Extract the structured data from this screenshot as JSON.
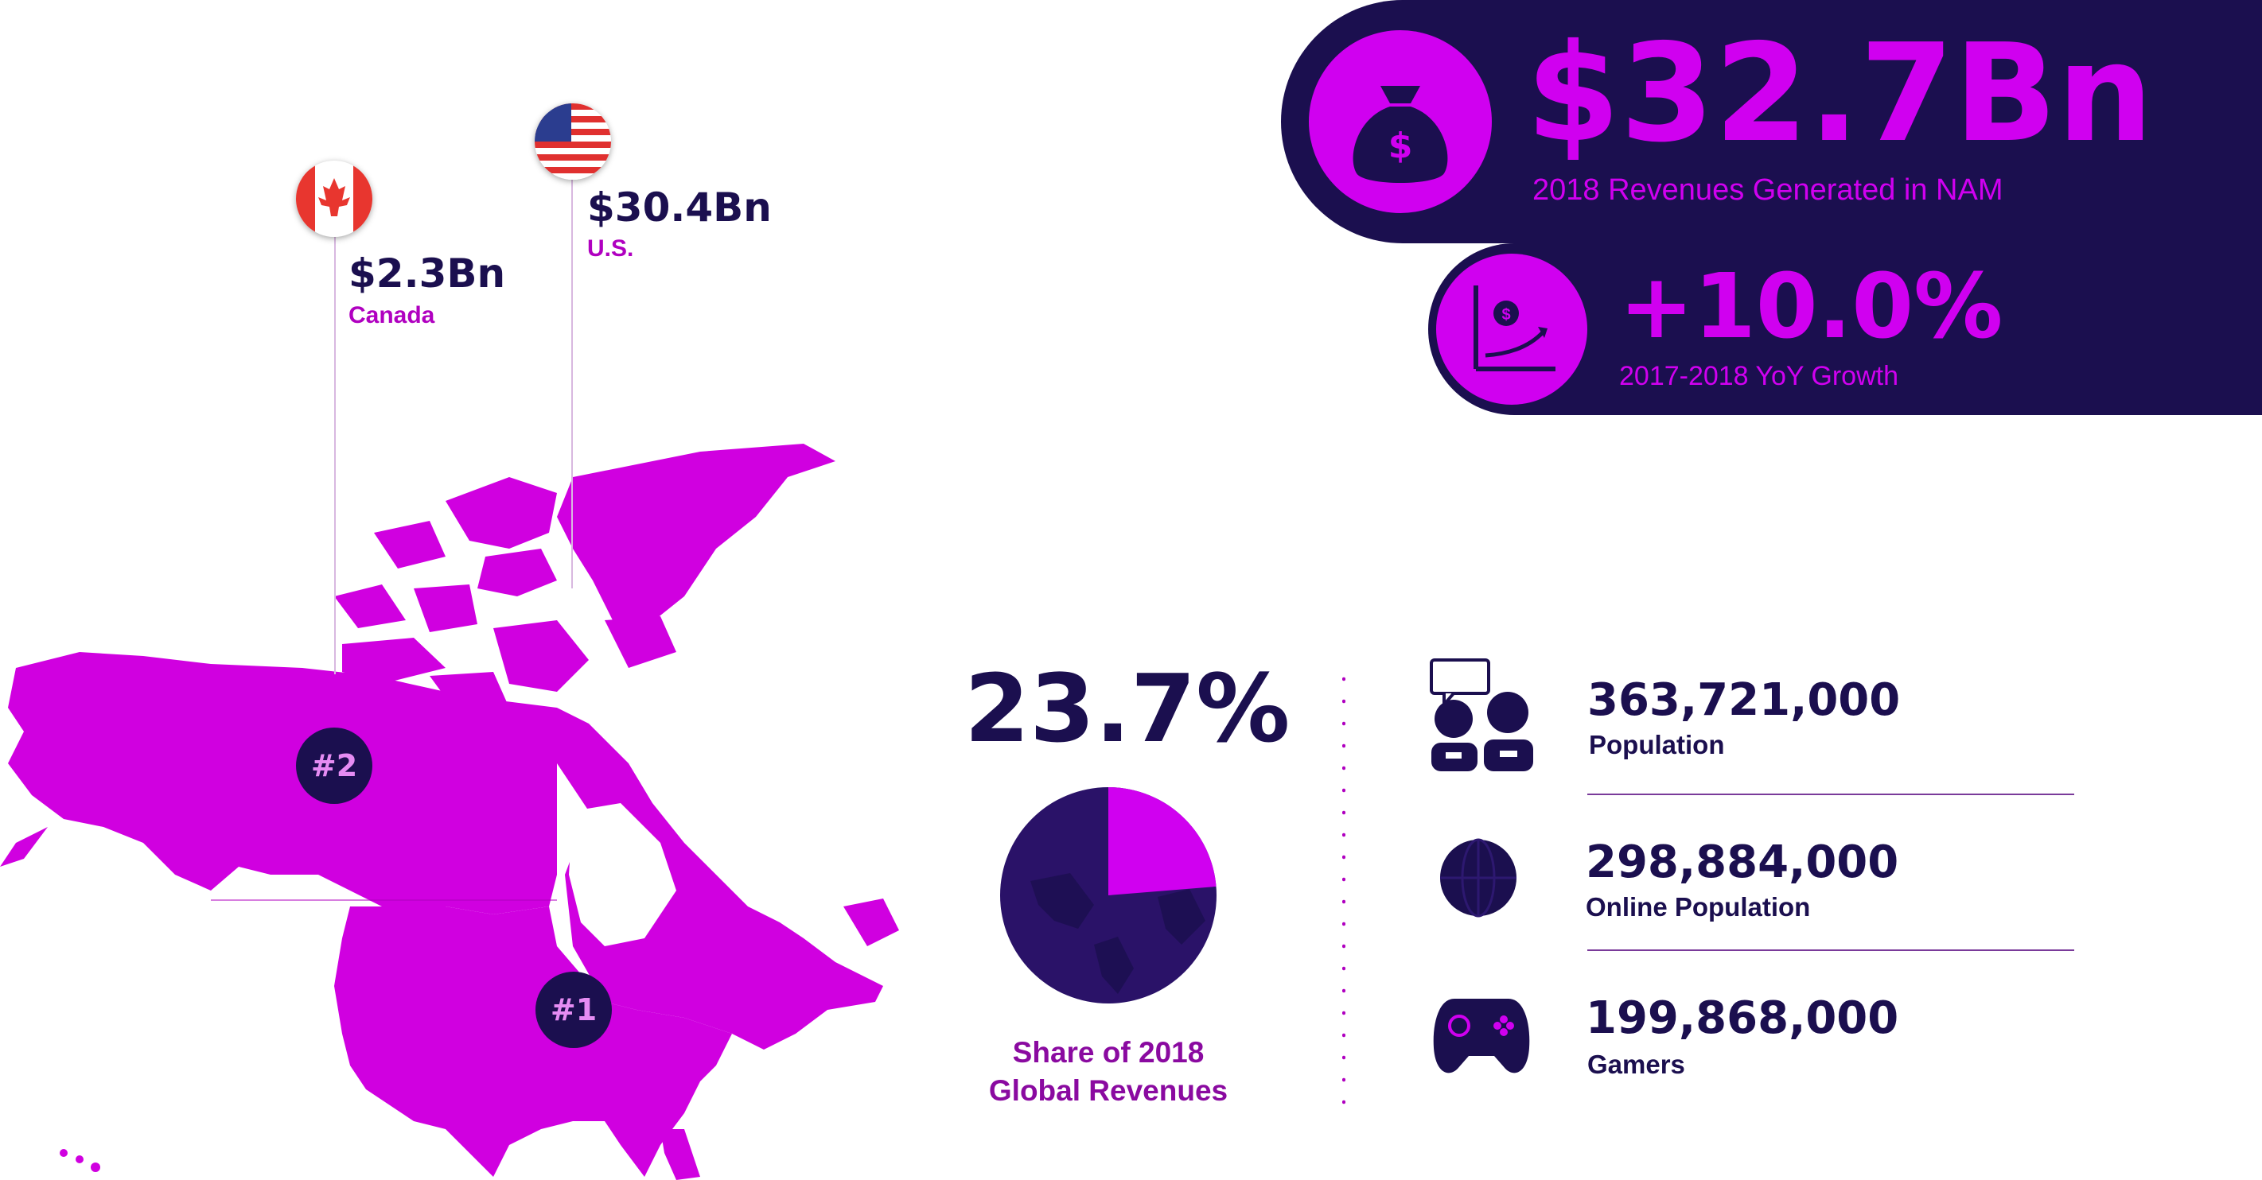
{
  "headline": {
    "revenue_value": "$32.7Bn",
    "revenue_label": "2018 Revenues Generated in NAM",
    "growth_value": "+10.0%",
    "growth_label": "2017-2018 YoY Growth",
    "money_icon": "money-bag-icon",
    "growth_icon": "growth-chart-icon"
  },
  "countries": [
    {
      "value": "$2.3Bn",
      "name": "Canada",
      "flag": "canada-flag-icon",
      "rank": "#2"
    },
    {
      "value": "$30.4Bn",
      "name": "U.S.",
      "flag": "us-flag-icon",
      "rank": "#1"
    }
  ],
  "global_share": {
    "value": "23.7%",
    "label_line1": "Share of 2018",
    "label_line2": "Global Revenues",
    "fraction": 0.237
  },
  "stats": [
    {
      "value": "363,721,000",
      "label": "Population",
      "icon": "people-chat-icon"
    },
    {
      "value": "298,884,000",
      "label": "Online Population",
      "icon": "globe-icon"
    },
    {
      "value": "199,868,000",
      "label": "Gamers",
      "icon": "gamepad-icon"
    }
  ],
  "colors": {
    "navy": "#1b0f4f",
    "magenta": "#d000f0",
    "map": "#d000e0"
  }
}
